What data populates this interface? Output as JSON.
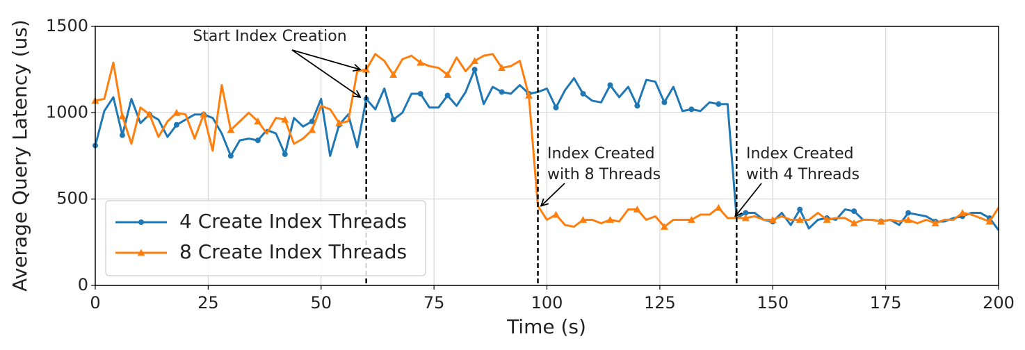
{
  "chart_data": {
    "type": "line",
    "x_label": "Time (s)",
    "y_label": "Average Query Latency (us)",
    "x": [
      0,
      2,
      4,
      6,
      8,
      10,
      12,
      14,
      16,
      18,
      20,
      22,
      24,
      26,
      28,
      30,
      32,
      34,
      36,
      38,
      40,
      42,
      44,
      46,
      48,
      50,
      52,
      54,
      56,
      58,
      60,
      62,
      64,
      66,
      68,
      70,
      72,
      74,
      76,
      78,
      80,
      82,
      84,
      86,
      88,
      90,
      92,
      94,
      96,
      98,
      100,
      102,
      104,
      106,
      108,
      110,
      112,
      114,
      116,
      118,
      120,
      122,
      124,
      126,
      128,
      130,
      132,
      134,
      136,
      138,
      140,
      142,
      144,
      146,
      148,
      150,
      152,
      154,
      156,
      158,
      160,
      162,
      164,
      166,
      168,
      170,
      172,
      174,
      176,
      178,
      180,
      182,
      184,
      186,
      188,
      190,
      192,
      194,
      196,
      198,
      200
    ],
    "series": [
      {
        "name": "4 Create Index Threads",
        "color": "#1f77b4",
        "marker": "circle",
        "values": [
          810,
          1010,
          1090,
          870,
          1080,
          940,
          990,
          960,
          860,
          930,
          960,
          990,
          990,
          970,
          880,
          750,
          840,
          850,
          840,
          900,
          880,
          760,
          970,
          920,
          950,
          1080,
          750,
          930,
          990,
          800,
          1080,
          1020,
          1140,
          960,
          1000,
          1110,
          1110,
          1030,
          1030,
          1100,
          1040,
          1120,
          1250,
          1050,
          1150,
          1120,
          1110,
          1160,
          1110,
          1120,
          1140,
          1030,
          1130,
          1200,
          1110,
          1070,
          1060,
          1160,
          1090,
          1150,
          1040,
          1190,
          1180,
          1060,
          1150,
          1010,
          1020,
          1010,
          1060,
          1050,
          1050,
          390,
          420,
          420,
          380,
          370,
          420,
          350,
          440,
          330,
          380,
          390,
          380,
          440,
          430,
          380,
          380,
          370,
          380,
          350,
          420,
          410,
          400,
          370,
          370,
          390,
          400,
          420,
          420,
          390,
          320
        ]
      },
      {
        "name": "8 Create Index Threads",
        "color": "#ff7f0e",
        "marker": "triangle",
        "values": [
          1070,
          1080,
          1290,
          980,
          820,
          1030,
          990,
          860,
          950,
          1000,
          990,
          850,
          990,
          780,
          1160,
          900,
          950,
          1000,
          950,
          880,
          970,
          960,
          820,
          850,
          900,
          1040,
          1020,
          940,
          950,
          1240,
          1250,
          1340,
          1300,
          1220,
          1310,
          1330,
          1290,
          1270,
          1260,
          1220,
          1320,
          1240,
          1300,
          1330,
          1340,
          1260,
          1270,
          1300,
          1100,
          460,
          380,
          410,
          350,
          340,
          380,
          380,
          360,
          380,
          370,
          440,
          440,
          380,
          400,
          340,
          380,
          380,
          380,
          410,
          410,
          450,
          390,
          390,
          390,
          400,
          380,
          380,
          400,
          380,
          380,
          380,
          420,
          380,
          390,
          390,
          360,
          380,
          380,
          370,
          380,
          370,
          380,
          360,
          380,
          360,
          380,
          380,
          420,
          410,
          390,
          370,
          450
        ]
      }
    ],
    "markevery": 3,
    "xlim": [
      0,
      200
    ],
    "xticks": [
      0,
      25,
      50,
      75,
      100,
      125,
      150,
      175,
      200
    ],
    "ylim": [
      0,
      1500
    ],
    "yticks": [
      0,
      500,
      1000,
      1500
    ],
    "grid": true,
    "legend": "lower left",
    "vlines": [
      60,
      98,
      142
    ],
    "annotations": [
      {
        "lines": [
          "Start Index Creation"
        ],
        "targets": [
          [
            59,
            1250
          ],
          [
            59,
            1090
          ]
        ]
      },
      {
        "lines": [
          "Index Created",
          "with 8 Threads"
        ],
        "targets": [
          [
            99,
            460
          ]
        ]
      },
      {
        "lines": [
          "Index Created",
          "with 4 Threads"
        ],
        "targets": [
          [
            142,
            400
          ]
        ]
      }
    ]
  }
}
